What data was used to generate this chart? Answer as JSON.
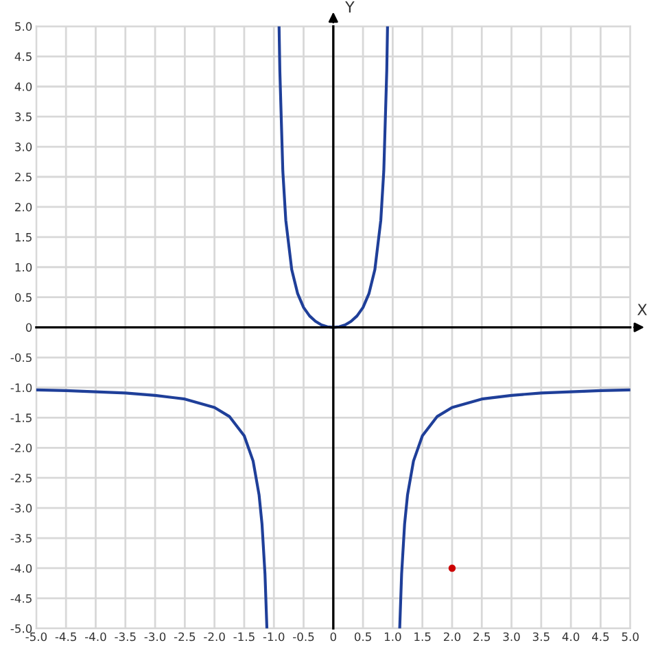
{
  "chart_data": {
    "type": "line",
    "xlabel": "X",
    "ylabel": "Y",
    "xlim": [
      -5,
      5
    ],
    "ylim": [
      -5,
      5
    ],
    "xticks": [
      {
        "value": -5,
        "label": "-5.0"
      },
      {
        "value": -4.5,
        "label": "-4.5"
      },
      {
        "value": -4,
        "label": "-4.0"
      },
      {
        "value": -3.5,
        "label": "-3.5"
      },
      {
        "value": -3,
        "label": "-3.0"
      },
      {
        "value": -2.5,
        "label": "-2.5"
      },
      {
        "value": -2,
        "label": "-2.0"
      },
      {
        "value": -1.5,
        "label": "-1.5"
      },
      {
        "value": -1,
        "label": "-1.0"
      },
      {
        "value": -0.5,
        "label": "-0.5"
      },
      {
        "value": 0,
        "label": "0"
      },
      {
        "value": 0.5,
        "label": "0.5"
      },
      {
        "value": 1,
        "label": "1.0"
      },
      {
        "value": 1.5,
        "label": "1.5"
      },
      {
        "value": 2,
        "label": "2.0"
      },
      {
        "value": 2.5,
        "label": "2.5"
      },
      {
        "value": 3,
        "label": "3.0"
      },
      {
        "value": 3.5,
        "label": "3.5"
      },
      {
        "value": 4,
        "label": "4.0"
      },
      {
        "value": 4.5,
        "label": "4.5"
      },
      {
        "value": 5,
        "label": "5.0"
      }
    ],
    "yticks": [
      {
        "value": -5,
        "label": "-5.0"
      },
      {
        "value": -4.5,
        "label": "-4.5"
      },
      {
        "value": -4,
        "label": "-4.0"
      },
      {
        "value": -3.5,
        "label": "-3.5"
      },
      {
        "value": -3,
        "label": "-3.0"
      },
      {
        "value": -2.5,
        "label": "-2.5"
      },
      {
        "value": -2,
        "label": "-2.0"
      },
      {
        "value": -1.5,
        "label": "-1.5"
      },
      {
        "value": -1,
        "label": "-1.0"
      },
      {
        "value": -0.5,
        "label": "-0.5"
      },
      {
        "value": 0,
        "label": "0"
      },
      {
        "value": 0.5,
        "label": "0.5"
      },
      {
        "value": 1,
        "label": "1.0"
      },
      {
        "value": 1.5,
        "label": "1.5"
      },
      {
        "value": 2,
        "label": "2.0"
      },
      {
        "value": 2.5,
        "label": "2.5"
      },
      {
        "value": 3,
        "label": "3.0"
      },
      {
        "value": 3.5,
        "label": "3.5"
      },
      {
        "value": 4,
        "label": "4.0"
      },
      {
        "value": 4.5,
        "label": "4.5"
      },
      {
        "value": 5,
        "label": "5.0"
      }
    ],
    "grid": true,
    "marker": "none",
    "line_style": "solid",
    "series": [
      {
        "color": "#1f3f99",
        "x": [
          -5,
          -4.5,
          -4,
          -3.5,
          -3,
          -2.5,
          -2,
          -1.75,
          -1.5,
          -1.35,
          -1.25,
          -1.2,
          -1.15,
          -1.118
        ],
        "values": [
          -1.04,
          -1.05,
          -1.07,
          -1.09,
          -1.13,
          -1.19,
          -1.33,
          -1.48,
          -1.8,
          -2.22,
          -2.78,
          -3.27,
          -4.1,
          -5.0
        ]
      },
      {
        "color": "#1f3f99",
        "x": [
          -0.913,
          -0.9,
          -0.85,
          -0.8,
          -0.7,
          -0.6,
          -0.5,
          -0.4,
          -0.3,
          -0.2,
          -0.1,
          0,
          0.1,
          0.2,
          0.3,
          0.4,
          0.5,
          0.6,
          0.7,
          0.8,
          0.85,
          0.9,
          0.913
        ],
        "values": [
          5.0,
          4.26,
          2.6,
          1.78,
          0.96,
          0.56,
          0.33,
          0.19,
          0.1,
          0.04,
          0.01,
          0,
          0.01,
          0.04,
          0.1,
          0.19,
          0.33,
          0.56,
          0.96,
          1.78,
          2.6,
          4.26,
          5.0
        ]
      },
      {
        "color": "#1f3f99",
        "x": [
          1.118,
          1.15,
          1.2,
          1.25,
          1.35,
          1.5,
          1.75,
          2,
          2.5,
          3,
          3.5,
          4,
          4.5,
          5
        ],
        "values": [
          -5.0,
          -4.1,
          -3.27,
          -2.78,
          -2.22,
          -1.8,
          -1.48,
          -1.33,
          -1.19,
          -1.13,
          -1.09,
          -1.07,
          -1.05,
          -1.04
        ]
      },
      {
        "type": "scatter",
        "color": "#cc0000",
        "marker": "circle",
        "x": [
          2
        ],
        "values": [
          -4
        ]
      }
    ]
  }
}
